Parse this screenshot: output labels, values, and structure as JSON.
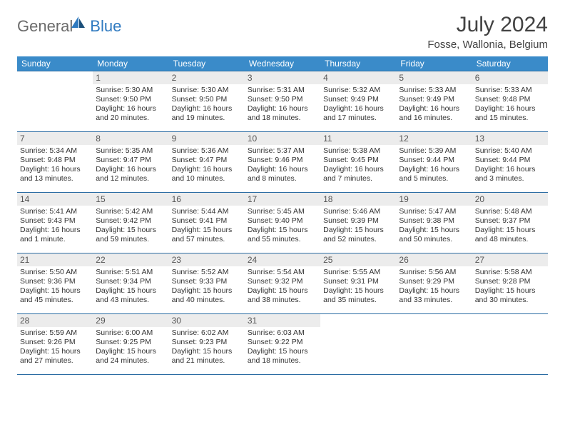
{
  "brand": {
    "part1": "General",
    "part2": "Blue"
  },
  "title": "July 2024",
  "location": "Fosse, Wallonia, Belgium",
  "colors": {
    "header_bg": "#3a8bc9",
    "header_text": "#ffffff",
    "rule": "#2b6ca3",
    "daynum_bg": "#ececec",
    "text": "#333333",
    "logo_gray": "#6b6b6b",
    "logo_blue": "#2f7ac0"
  },
  "weekdays": [
    "Sunday",
    "Monday",
    "Tuesday",
    "Wednesday",
    "Thursday",
    "Friday",
    "Saturday"
  ],
  "weeks": [
    [
      null,
      {
        "d": "1",
        "sr": "Sunrise: 5:30 AM",
        "ss": "Sunset: 9:50 PM",
        "dl1": "Daylight: 16 hours",
        "dl2": "and 20 minutes."
      },
      {
        "d": "2",
        "sr": "Sunrise: 5:30 AM",
        "ss": "Sunset: 9:50 PM",
        "dl1": "Daylight: 16 hours",
        "dl2": "and 19 minutes."
      },
      {
        "d": "3",
        "sr": "Sunrise: 5:31 AM",
        "ss": "Sunset: 9:50 PM",
        "dl1": "Daylight: 16 hours",
        "dl2": "and 18 minutes."
      },
      {
        "d": "4",
        "sr": "Sunrise: 5:32 AM",
        "ss": "Sunset: 9:49 PM",
        "dl1": "Daylight: 16 hours",
        "dl2": "and 17 minutes."
      },
      {
        "d": "5",
        "sr": "Sunrise: 5:33 AM",
        "ss": "Sunset: 9:49 PM",
        "dl1": "Daylight: 16 hours",
        "dl2": "and 16 minutes."
      },
      {
        "d": "6",
        "sr": "Sunrise: 5:33 AM",
        "ss": "Sunset: 9:48 PM",
        "dl1": "Daylight: 16 hours",
        "dl2": "and 15 minutes."
      }
    ],
    [
      {
        "d": "7",
        "sr": "Sunrise: 5:34 AM",
        "ss": "Sunset: 9:48 PM",
        "dl1": "Daylight: 16 hours",
        "dl2": "and 13 minutes."
      },
      {
        "d": "8",
        "sr": "Sunrise: 5:35 AM",
        "ss": "Sunset: 9:47 PM",
        "dl1": "Daylight: 16 hours",
        "dl2": "and 12 minutes."
      },
      {
        "d": "9",
        "sr": "Sunrise: 5:36 AM",
        "ss": "Sunset: 9:47 PM",
        "dl1": "Daylight: 16 hours",
        "dl2": "and 10 minutes."
      },
      {
        "d": "10",
        "sr": "Sunrise: 5:37 AM",
        "ss": "Sunset: 9:46 PM",
        "dl1": "Daylight: 16 hours",
        "dl2": "and 8 minutes."
      },
      {
        "d": "11",
        "sr": "Sunrise: 5:38 AM",
        "ss": "Sunset: 9:45 PM",
        "dl1": "Daylight: 16 hours",
        "dl2": "and 7 minutes."
      },
      {
        "d": "12",
        "sr": "Sunrise: 5:39 AM",
        "ss": "Sunset: 9:44 PM",
        "dl1": "Daylight: 16 hours",
        "dl2": "and 5 minutes."
      },
      {
        "d": "13",
        "sr": "Sunrise: 5:40 AM",
        "ss": "Sunset: 9:44 PM",
        "dl1": "Daylight: 16 hours",
        "dl2": "and 3 minutes."
      }
    ],
    [
      {
        "d": "14",
        "sr": "Sunrise: 5:41 AM",
        "ss": "Sunset: 9:43 PM",
        "dl1": "Daylight: 16 hours",
        "dl2": "and 1 minute."
      },
      {
        "d": "15",
        "sr": "Sunrise: 5:42 AM",
        "ss": "Sunset: 9:42 PM",
        "dl1": "Daylight: 15 hours",
        "dl2": "and 59 minutes."
      },
      {
        "d": "16",
        "sr": "Sunrise: 5:44 AM",
        "ss": "Sunset: 9:41 PM",
        "dl1": "Daylight: 15 hours",
        "dl2": "and 57 minutes."
      },
      {
        "d": "17",
        "sr": "Sunrise: 5:45 AM",
        "ss": "Sunset: 9:40 PM",
        "dl1": "Daylight: 15 hours",
        "dl2": "and 55 minutes."
      },
      {
        "d": "18",
        "sr": "Sunrise: 5:46 AM",
        "ss": "Sunset: 9:39 PM",
        "dl1": "Daylight: 15 hours",
        "dl2": "and 52 minutes."
      },
      {
        "d": "19",
        "sr": "Sunrise: 5:47 AM",
        "ss": "Sunset: 9:38 PM",
        "dl1": "Daylight: 15 hours",
        "dl2": "and 50 minutes."
      },
      {
        "d": "20",
        "sr": "Sunrise: 5:48 AM",
        "ss": "Sunset: 9:37 PM",
        "dl1": "Daylight: 15 hours",
        "dl2": "and 48 minutes."
      }
    ],
    [
      {
        "d": "21",
        "sr": "Sunrise: 5:50 AM",
        "ss": "Sunset: 9:36 PM",
        "dl1": "Daylight: 15 hours",
        "dl2": "and 45 minutes."
      },
      {
        "d": "22",
        "sr": "Sunrise: 5:51 AM",
        "ss": "Sunset: 9:34 PM",
        "dl1": "Daylight: 15 hours",
        "dl2": "and 43 minutes."
      },
      {
        "d": "23",
        "sr": "Sunrise: 5:52 AM",
        "ss": "Sunset: 9:33 PM",
        "dl1": "Daylight: 15 hours",
        "dl2": "and 40 minutes."
      },
      {
        "d": "24",
        "sr": "Sunrise: 5:54 AM",
        "ss": "Sunset: 9:32 PM",
        "dl1": "Daylight: 15 hours",
        "dl2": "and 38 minutes."
      },
      {
        "d": "25",
        "sr": "Sunrise: 5:55 AM",
        "ss": "Sunset: 9:31 PM",
        "dl1": "Daylight: 15 hours",
        "dl2": "and 35 minutes."
      },
      {
        "d": "26",
        "sr": "Sunrise: 5:56 AM",
        "ss": "Sunset: 9:29 PM",
        "dl1": "Daylight: 15 hours",
        "dl2": "and 33 minutes."
      },
      {
        "d": "27",
        "sr": "Sunrise: 5:58 AM",
        "ss": "Sunset: 9:28 PM",
        "dl1": "Daylight: 15 hours",
        "dl2": "and 30 minutes."
      }
    ],
    [
      {
        "d": "28",
        "sr": "Sunrise: 5:59 AM",
        "ss": "Sunset: 9:26 PM",
        "dl1": "Daylight: 15 hours",
        "dl2": "and 27 minutes."
      },
      {
        "d": "29",
        "sr": "Sunrise: 6:00 AM",
        "ss": "Sunset: 9:25 PM",
        "dl1": "Daylight: 15 hours",
        "dl2": "and 24 minutes."
      },
      {
        "d": "30",
        "sr": "Sunrise: 6:02 AM",
        "ss": "Sunset: 9:23 PM",
        "dl1": "Daylight: 15 hours",
        "dl2": "and 21 minutes."
      },
      {
        "d": "31",
        "sr": "Sunrise: 6:03 AM",
        "ss": "Sunset: 9:22 PM",
        "dl1": "Daylight: 15 hours",
        "dl2": "and 18 minutes."
      },
      null,
      null,
      null
    ]
  ]
}
